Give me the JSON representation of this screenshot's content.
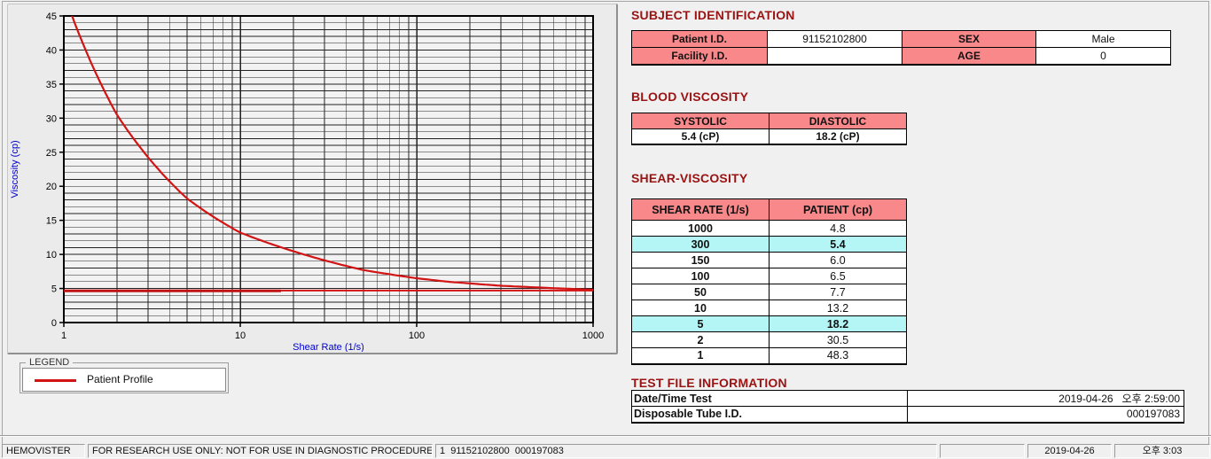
{
  "colors": {
    "section_title": "#9b1212",
    "table_header_pink": "#f8888a",
    "highlight_cyan": "#b4f6f6",
    "series_red": "#d21414",
    "axis_label_blue": "#0000cc"
  },
  "chart_data": {
    "type": "line",
    "title": "",
    "xlabel": "Shear Rate (1/s)",
    "ylabel": "Viscosity (cp)",
    "x_scale": "log",
    "xlim": [
      1,
      1000
    ],
    "ylim": [
      0,
      45
    ],
    "x_ticks": [
      1,
      10,
      100,
      1000
    ],
    "y_ticks": [
      0,
      5,
      10,
      15,
      20,
      25,
      30,
      35,
      40,
      45
    ],
    "y_minor_step": 1,
    "grid": true,
    "plot_bg": "#f2f2f2",
    "grid_color": "#222222",
    "axis_label_color": "#0000cc",
    "legend": {
      "position": "below-chart",
      "entries": [
        "Patient Profile"
      ]
    },
    "series": [
      {
        "name": "Patient Profile",
        "color": "#d21414",
        "width": 2.2,
        "interp": "loglog",
        "x": [
          1,
          2,
          5,
          10,
          50,
          100,
          150,
          300,
          1000
        ],
        "y": [
          48.3,
          30.5,
          18.2,
          13.2,
          7.7,
          6.5,
          6.0,
          5.4,
          4.8
        ]
      },
      {
        "name": "baseline",
        "color": "#d21414",
        "width": 2,
        "interp": "linear",
        "x": [
          1,
          1000
        ],
        "y": [
          4.7,
          4.7
        ]
      },
      {
        "name": "baseline-left-segment",
        "color": "#c01313",
        "width": 3,
        "interp": "linear",
        "x": [
          1,
          17
        ],
        "y": [
          4.65,
          4.65
        ]
      }
    ]
  },
  "legend": {
    "box_label": "LEGEND",
    "entry": "Patient Profile"
  },
  "subject": {
    "title": "SUBJECT IDENTIFICATION",
    "patient_id_label": "Patient I.D.",
    "patient_id_value": "91152102800",
    "sex_label": "SEX",
    "sex_value": "Male",
    "facility_id_label": "Facility I.D.",
    "facility_id_value": "",
    "age_label": "AGE",
    "age_value": "0"
  },
  "blood": {
    "title": "BLOOD VISCOSITY",
    "systolic_label": "SYSTOLIC",
    "diastolic_label": "DIASTOLIC",
    "systolic_value": "5.4 (cP)",
    "diastolic_value": "18.2 (cP)"
  },
  "shear": {
    "title": "SHEAR-VISCOSITY",
    "col_shear": "SHEAR RATE (1/s)",
    "col_patient": "PATIENT (cp)",
    "rows": [
      {
        "shear": "1000",
        "patient": "4.8",
        "highlight": false
      },
      {
        "shear": "300",
        "patient": "5.4",
        "highlight": true
      },
      {
        "shear": "150",
        "patient": "6.0",
        "highlight": false
      },
      {
        "shear": "100",
        "patient": "6.5",
        "highlight": false
      },
      {
        "shear": "50",
        "patient": "7.7",
        "highlight": false
      },
      {
        "shear": "10",
        "patient": "13.2",
        "highlight": false
      },
      {
        "shear": "5",
        "patient": "18.2",
        "highlight": true
      },
      {
        "shear": "2",
        "patient": "30.5",
        "highlight": false
      },
      {
        "shear": "1",
        "patient": "48.3",
        "highlight": false
      }
    ]
  },
  "tfi": {
    "title": "TEST FILE INFORMATION",
    "datetime_label": "Date/Time Test",
    "datetime_value": "2019-04-26   오후 2:59:00",
    "tube_label": "Disposable Tube I.D.",
    "tube_value": "000197083"
  },
  "status": {
    "app": "HEMOVISTER",
    "notice": "FOR RESEARCH USE ONLY: NOT FOR USE IN DIAGNOSTIC PROCEDURES",
    "record": "1  91152102800  000197083",
    "spare": "",
    "date": "2019-04-26",
    "time": "오후 3:03"
  }
}
